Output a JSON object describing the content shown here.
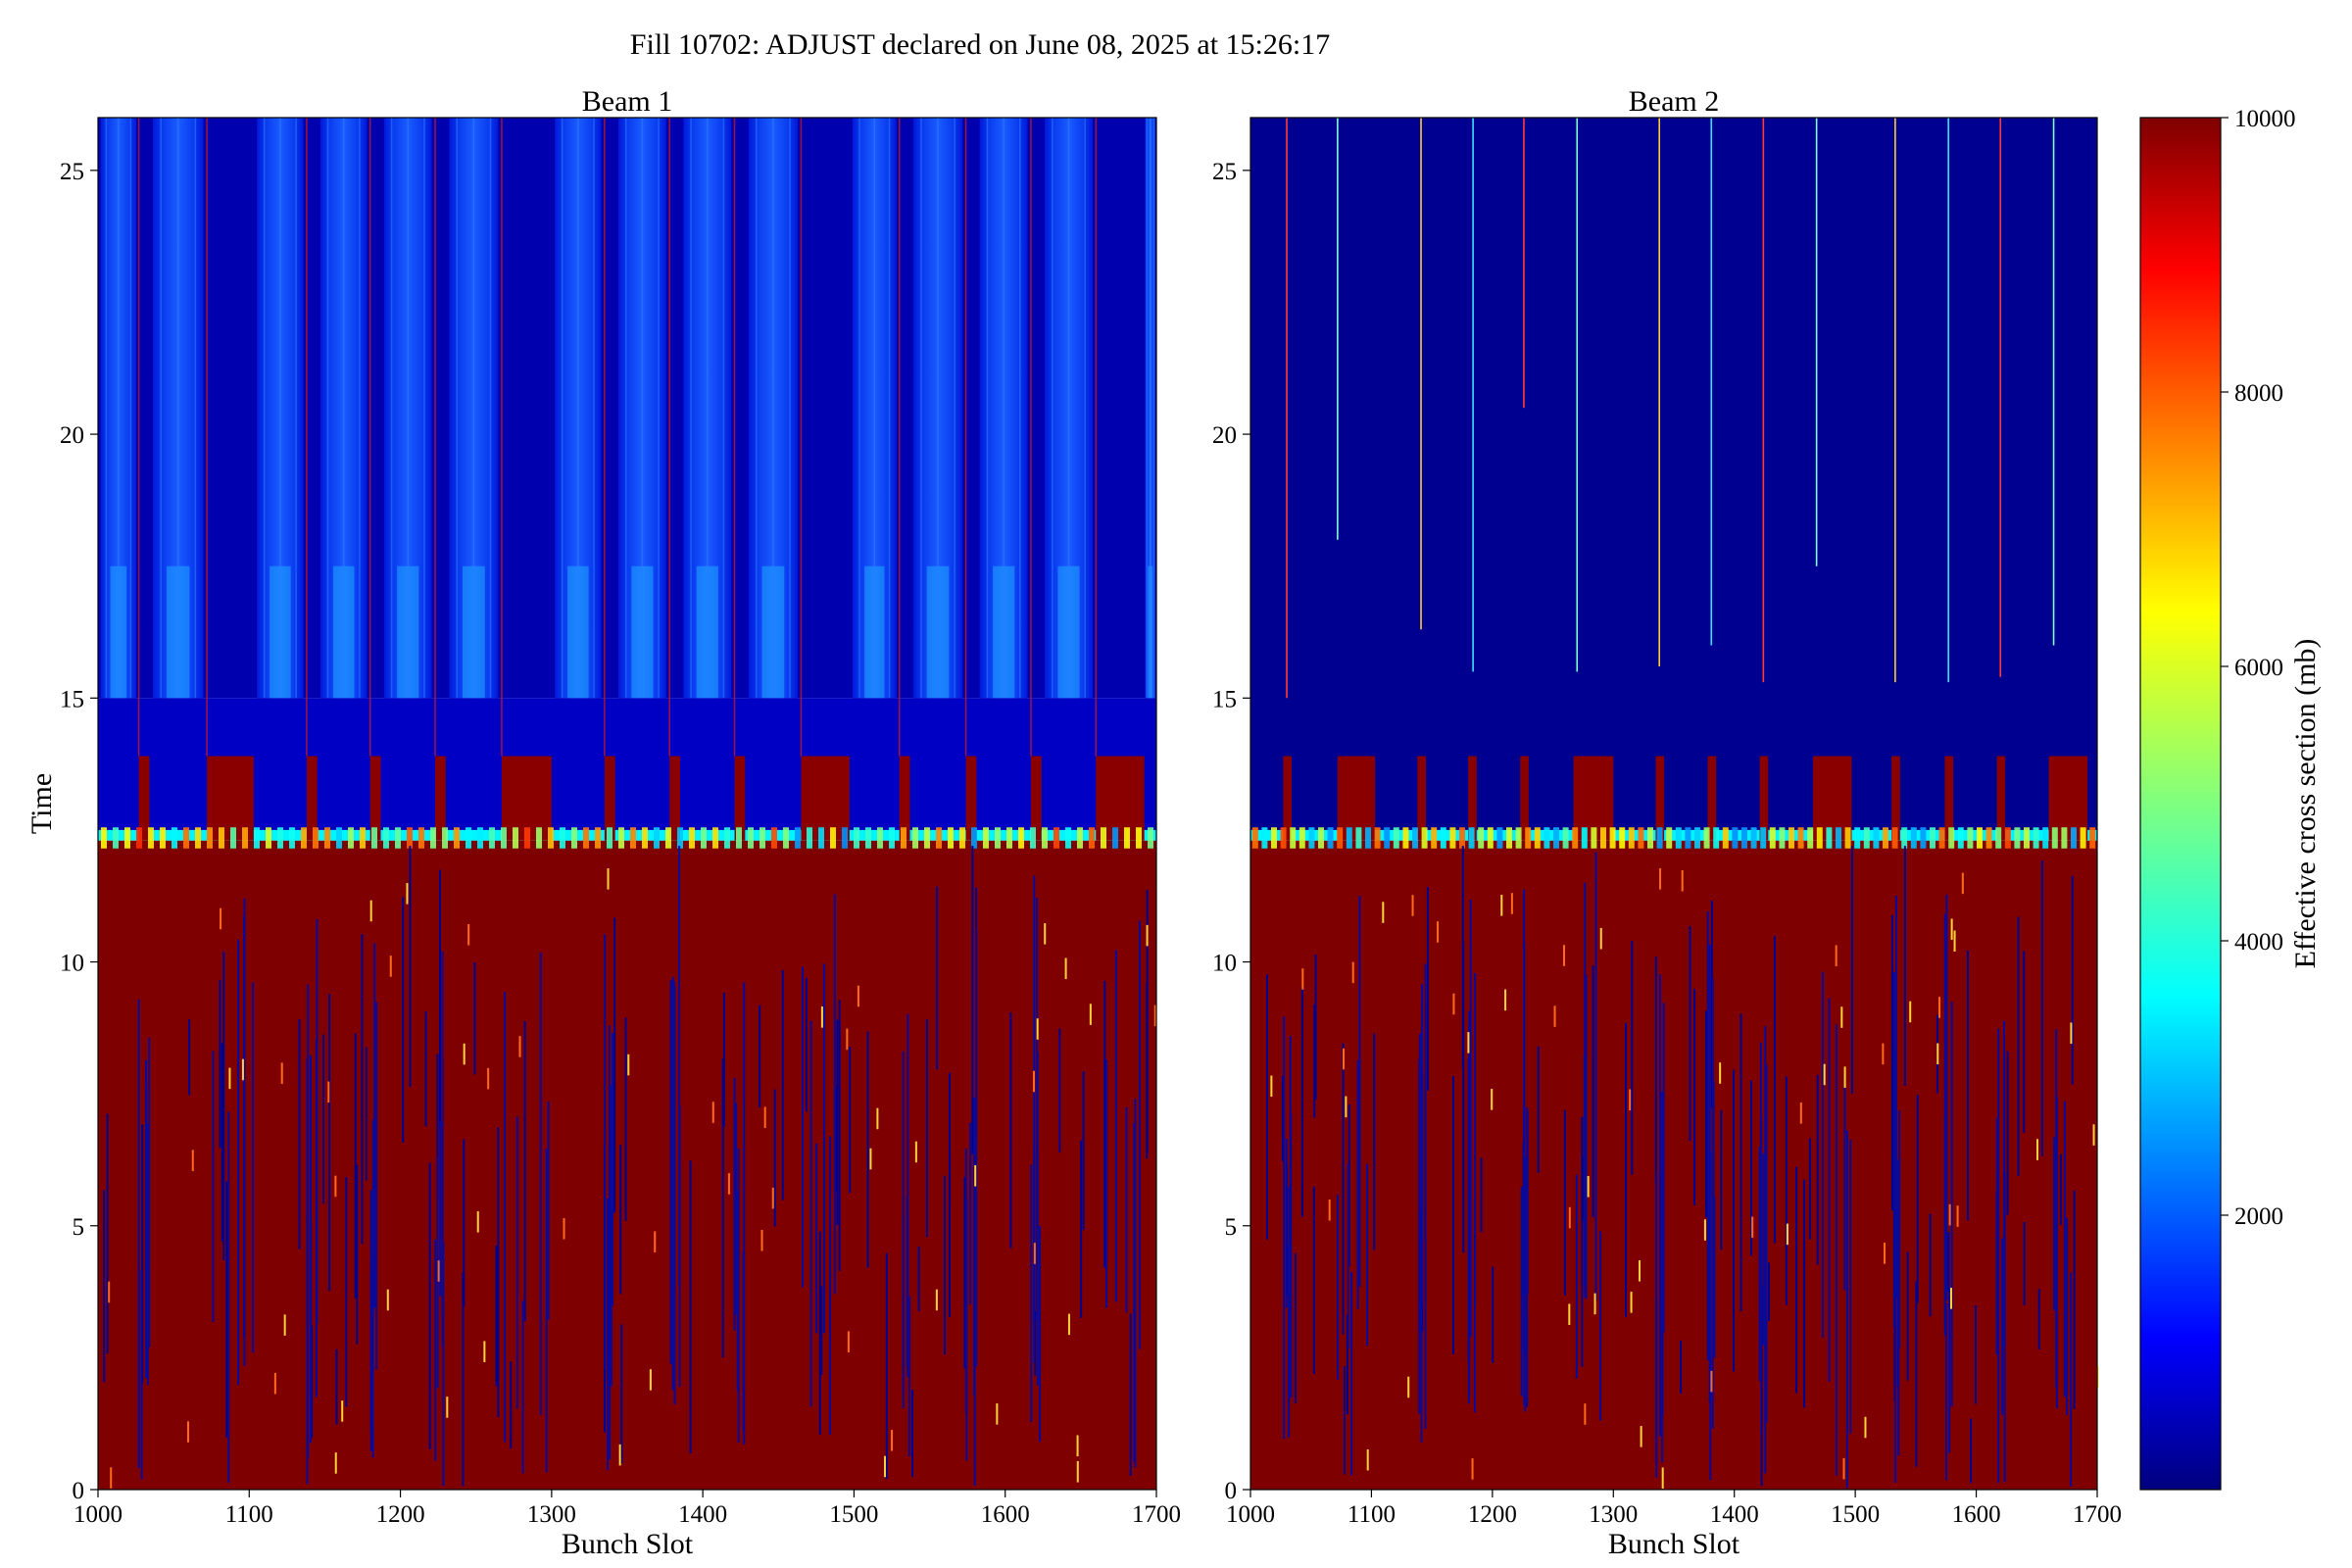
{
  "figure": {
    "title": "Fill 10702: ADJUST declared on June 08, 2025 at 15:26:17"
  },
  "chart_data": [
    {
      "type": "heatmap",
      "title": "Beam 1",
      "xlabel": "Bunch Slot",
      "ylabel": "Time",
      "xlim": [
        1000,
        1700
      ],
      "ylim": [
        0,
        26
      ],
      "xticks": [
        1000,
        1100,
        1200,
        1300,
        1400,
        1500,
        1600,
        1700
      ],
      "yticks": [
        0,
        5,
        10,
        15,
        20,
        25
      ],
      "bands": [
        {
          "y": [
            0,
            12.3
          ],
          "description_value": 10000
        },
        {
          "y": [
            12.3,
            12.5
          ],
          "description_value": 3500
        },
        {
          "y": [
            12.5,
            15
          ],
          "description_value": 600
        },
        {
          "y": [
            15,
            26
          ],
          "description_value": 400
        }
      ],
      "high_blocks": [
        [
          1027,
          1034
        ],
        [
          1072,
          1103
        ],
        [
          1138,
          1145
        ],
        [
          1180,
          1187
        ],
        [
          1223,
          1230
        ],
        [
          1267,
          1300
        ],
        [
          1335,
          1342
        ],
        [
          1378,
          1385
        ],
        [
          1421,
          1428
        ],
        [
          1465,
          1497
        ],
        [
          1530,
          1537
        ],
        [
          1574,
          1581
        ],
        [
          1617,
          1624
        ],
        [
          1660,
          1692
        ]
      ],
      "high_block_top": 13.9,
      "bright_stripes": [
        [
          1000,
          1027
        ],
        [
          1034,
          1072
        ],
        [
          1103,
          1138
        ],
        [
          1145,
          1180
        ],
        [
          1187,
          1223
        ],
        [
          1230,
          1267
        ],
        [
          1300,
          1335
        ],
        [
          1342,
          1378
        ],
        [
          1385,
          1421
        ],
        [
          1428,
          1465
        ],
        [
          1497,
          1530
        ],
        [
          1537,
          1574
        ],
        [
          1581,
          1617
        ],
        [
          1624,
          1660
        ],
        [
          1692,
          1700
        ]
      ]
    },
    {
      "type": "heatmap",
      "title": "Beam 2",
      "xlabel": "Bunch Slot",
      "ylabel": "",
      "xlim": [
        1000,
        1700
      ],
      "ylim": [
        0,
        26
      ],
      "xticks": [
        1000,
        1100,
        1200,
        1300,
        1400,
        1500,
        1600,
        1700
      ],
      "yticks": [
        0,
        5,
        10,
        15,
        20,
        25
      ],
      "bands": [
        {
          "y": [
            0,
            12.3
          ],
          "description_value": 10000
        },
        {
          "y": [
            12.3,
            12.5
          ],
          "description_value": 3500
        },
        {
          "y": [
            12.5,
            26
          ],
          "description_value": 150
        }
      ],
      "high_blocks": [
        [
          1027,
          1034
        ],
        [
          1072,
          1103
        ],
        [
          1138,
          1145
        ],
        [
          1180,
          1187
        ],
        [
          1223,
          1230
        ],
        [
          1267,
          1300
        ],
        [
          1335,
          1342
        ],
        [
          1378,
          1385
        ],
        [
          1421,
          1428
        ],
        [
          1465,
          1497
        ],
        [
          1530,
          1537
        ],
        [
          1574,
          1581
        ],
        [
          1617,
          1624
        ],
        [
          1660,
          1692
        ]
      ],
      "high_block_top": 13.9,
      "spikes": [
        [
          1030,
          15
        ],
        [
          1072,
          18
        ],
        [
          1141,
          16.3
        ],
        [
          1184,
          15.5
        ],
        [
          1226,
          20.5
        ],
        [
          1270,
          15.5
        ],
        [
          1338,
          15.6
        ],
        [
          1381,
          16
        ],
        [
          1424,
          15.3
        ],
        [
          1468,
          17.5
        ],
        [
          1533,
          15.3
        ],
        [
          1577,
          15.3
        ],
        [
          1620,
          15.4
        ],
        [
          1664,
          16
        ]
      ]
    }
  ],
  "colorbar": {
    "label": "Effective cross section (mb)",
    "range": [
      0,
      10000
    ],
    "ticks": [
      2000,
      4000,
      6000,
      8000,
      10000
    ],
    "colormap": "jet",
    "colors": [
      "#00007f",
      "#0000ff",
      "#00ffff",
      "#7fff7f",
      "#ffff00",
      "#ff0000",
      "#7f0000"
    ]
  },
  "colors": {
    "saturated": "#800000",
    "background_low": "#00008f",
    "stripe_high": "#1f6cff"
  }
}
